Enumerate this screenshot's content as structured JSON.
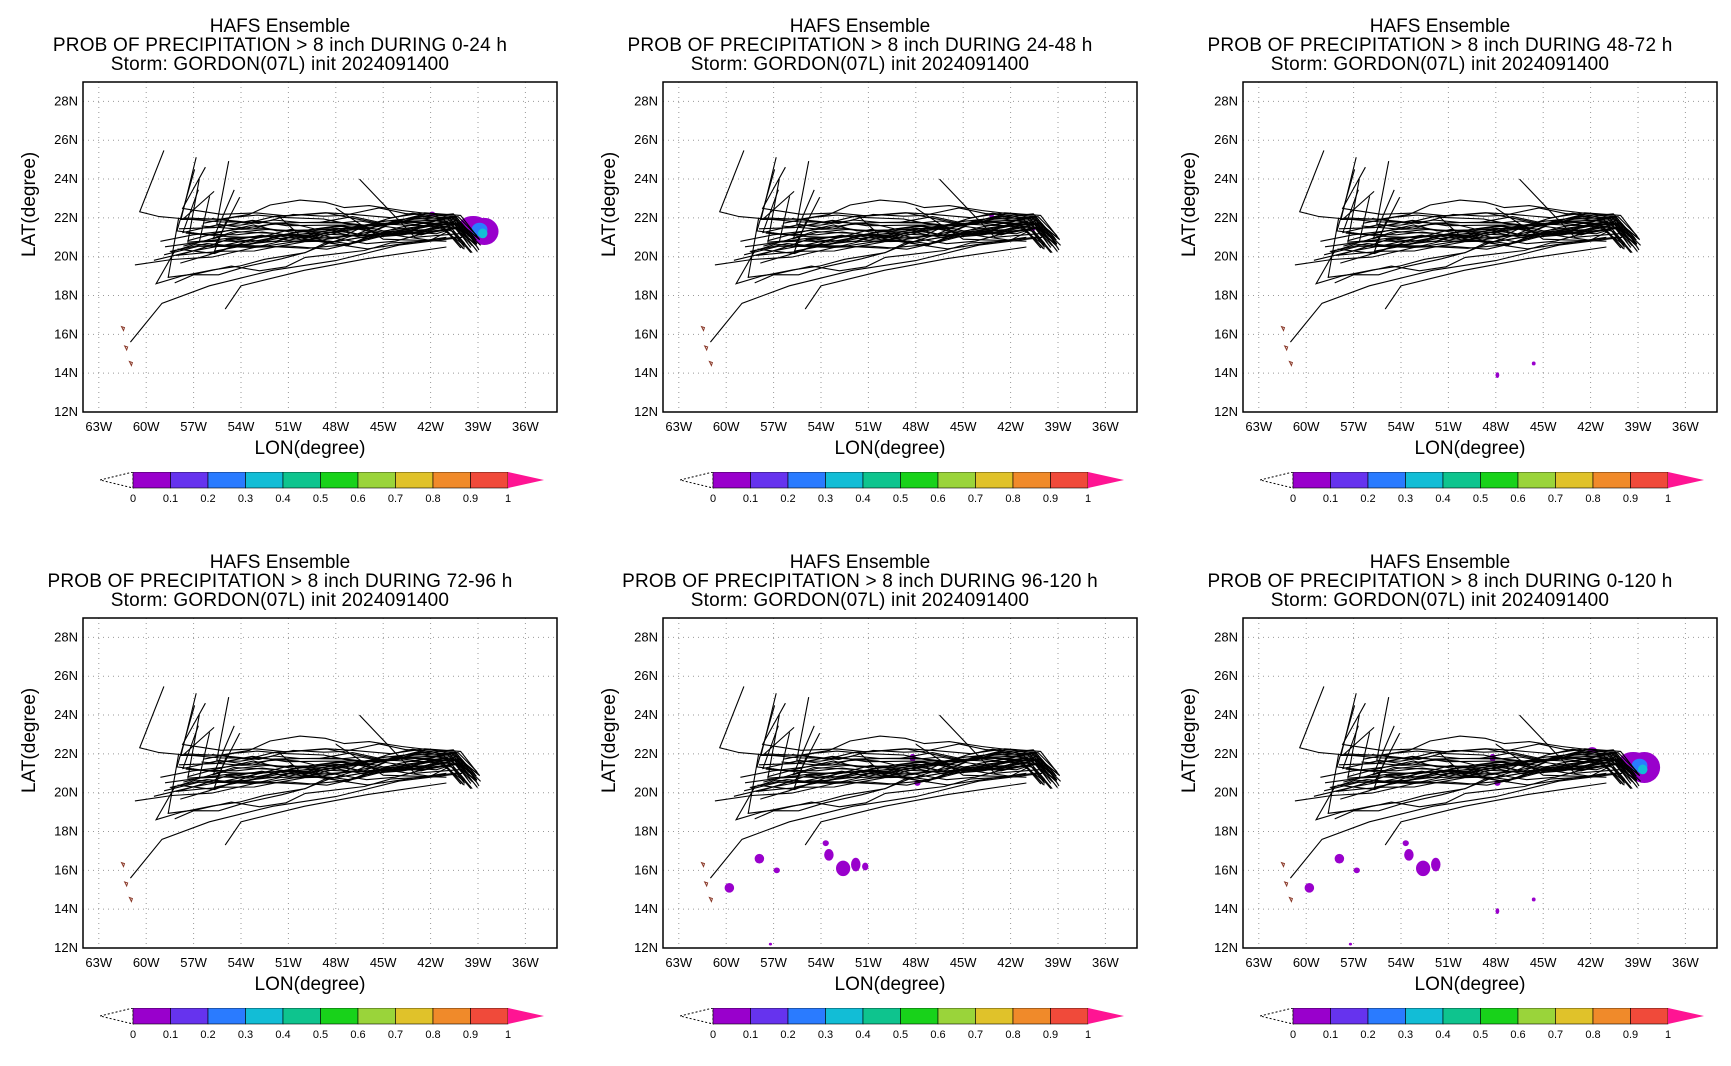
{
  "common": {
    "model": "HAFS Ensemble",
    "storm_line": "Storm: GORDON(07L) init 2024091400",
    "xlabel": "LON(degree)",
    "ylabel": "LAT(degree)",
    "lat_ticks": [
      "28N",
      "26N",
      "24N",
      "22N",
      "20N",
      "18N",
      "16N",
      "14N",
      "12N"
    ],
    "lon_ticks": [
      "63W",
      "60W",
      "57W",
      "54W",
      "51W",
      "48W",
      "45W",
      "42W",
      "39W",
      "36W"
    ],
    "colorbar_ticks": [
      "0",
      "0.1",
      "0.2",
      "0.3",
      "0.4",
      "0.5",
      "0.6",
      "0.7",
      "0.8",
      "0.9",
      "1"
    ],
    "colorbar_colors": [
      "#9900cc",
      "#6633ee",
      "#2a7bff",
      "#12bdd6",
      "#0ec48e",
      "#18d21a",
      "#9ad43a",
      "#e0c22a",
      "#f08a2a",
      "#f04a3a",
      "#ff1493"
    ]
  },
  "panels": [
    {
      "title": "PROB OF PRECIPITATION > 8 inch DURING  0-24 h"
    },
    {
      "title": "PROB OF PRECIPITATION > 8 inch DURING 24-48 h"
    },
    {
      "title": "PROB OF PRECIPITATION > 8 inch DURING 48-72 h"
    },
    {
      "title": "PROB OF PRECIPITATION > 8 inch DURING 72-96 h"
    },
    {
      "title": "PROB OF PRECIPITATION > 8 inch DURING 96-120 h"
    },
    {
      "title": "PROB OF PRECIPITATION > 8 inch DURING 0-120 h"
    }
  ],
  "map_extent": {
    "lon_min": -64,
    "lon_max": -34,
    "lat_min": 12,
    "lat_max": 29
  }
}
